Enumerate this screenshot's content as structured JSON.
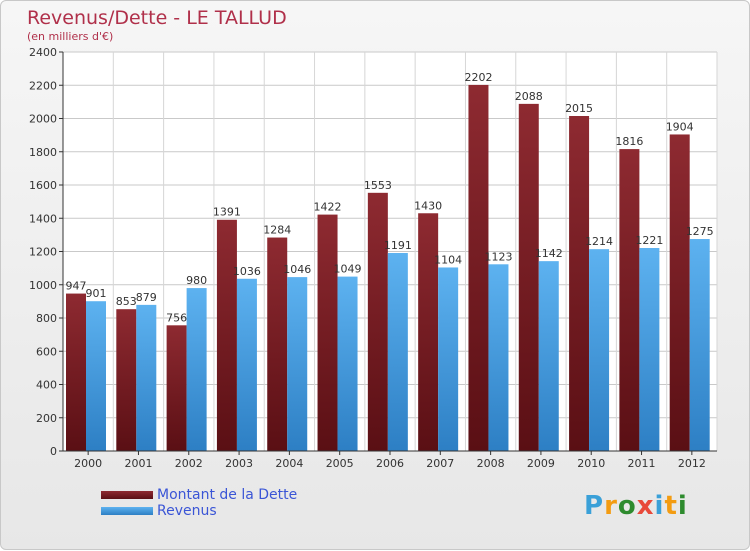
{
  "chart_data": {
    "type": "bar",
    "title": "Revenus/Dette - LE TALLUD",
    "subtitle": "(en milliers d'€)",
    "categories": [
      "2000",
      "2001",
      "2002",
      "2003",
      "2004",
      "2005",
      "2006",
      "2007",
      "2008",
      "2009",
      "2010",
      "2011",
      "2012"
    ],
    "series": [
      {
        "name": "Montant de la Dette",
        "color": "#7a1f24",
        "values": [
          947,
          853,
          756,
          1391,
          1284,
          1422,
          1553,
          1430,
          2202,
          2088,
          2015,
          1816,
          1904
        ]
      },
      {
        "name": "Revenus",
        "color": "#4aa2e6",
        "values": [
          901,
          879,
          980,
          1036,
          1046,
          1049,
          1191,
          1104,
          1123,
          1142,
          1214,
          1221,
          1275
        ]
      }
    ],
    "ylim": [
      0,
      2400
    ],
    "yticks": [
      0,
      200,
      400,
      600,
      800,
      1000,
      1200,
      1400,
      1600,
      1800,
      2000,
      2200,
      2400
    ],
    "grid": true,
    "legend_position": "bottom-left"
  },
  "logo": {
    "text": "Proxiti",
    "letters": [
      "P",
      "r",
      "o",
      "x",
      "i",
      "t",
      "i"
    ],
    "colors": [
      "#3aa0d8",
      "#f39c12",
      "#2e8b2e",
      "#e8493a",
      "#3aa0d8",
      "#f39c12",
      "#2e8b2e"
    ]
  }
}
